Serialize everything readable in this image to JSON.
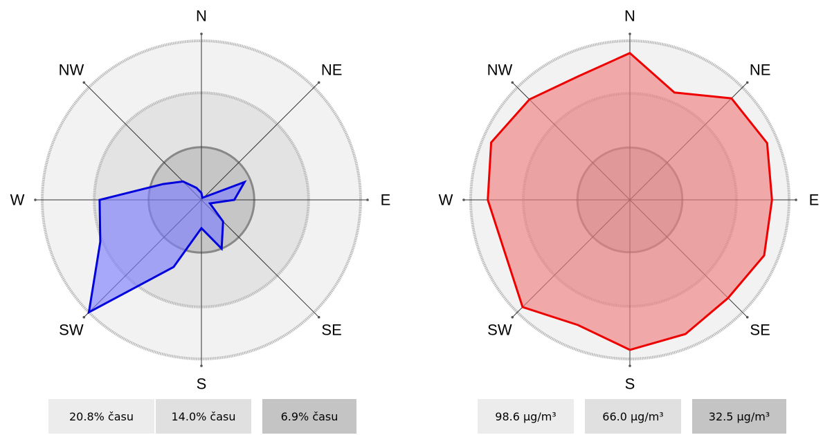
{
  "directions": [
    "N",
    "NE",
    "E",
    "SE",
    "S",
    "SW",
    "W",
    "NW"
  ],
  "chart_data": [
    {
      "type": "radar",
      "title": "",
      "directions": [
        "N",
        "NE",
        "E",
        "SE",
        "S",
        "SW",
        "W",
        "NW"
      ],
      "radial_max": 20.8,
      "rings": [
        20.8,
        14.0,
        6.9
      ],
      "ring_labels": [
        "20.8% času",
        "14.0% času",
        "6.9% času"
      ],
      "series": [
        {
          "color": "#0000dd",
          "fill": "#8080ff",
          "values": [
            0.9,
            0.3,
            0.5,
            6.1,
            4.3,
            1.2,
            4.0,
            6.9,
            3.7,
            9.5,
            20.8,
            14.3,
            13.3,
            5.4,
            3.4,
            1.7
          ]
        }
      ]
    },
    {
      "type": "radar",
      "title": "",
      "directions": [
        "N",
        "NE",
        "E",
        "SE",
        "S",
        "SW",
        "W",
        "NW"
      ],
      "radial_max": 98.6,
      "rings": [
        98.6,
        66.0,
        32.5
      ],
      "ring_labels": [
        "98.6 µg/m³",
        "66.0 µg/m³",
        "32.5 µg/m³"
      ],
      "series": [
        {
          "color": "#ee0000",
          "fill": "#f08080",
          "values": [
            91,
            72,
            89,
            92,
            88,
            90,
            86,
            90,
            93,
            84,
            94,
            84,
            88,
            93,
            88,
            83
          ]
        }
      ]
    }
  ]
}
